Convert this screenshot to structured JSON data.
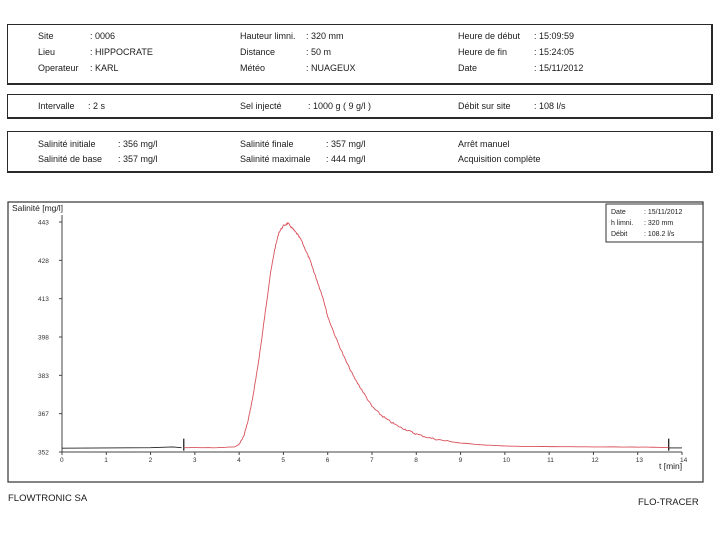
{
  "header": {
    "site_label": "Site",
    "site_value": ": 0006",
    "lieu_label": "Lieu",
    "lieu_value": ": HIPPOCRATE",
    "operateur_label": "Operateur",
    "operateur_value": ": KARL",
    "hauteur_label": "Hauteur limni.",
    "hauteur_value": ": 320 mm",
    "distance_label": "Distance",
    "distance_value": ": 50 m",
    "meteo_label": "Météo",
    "meteo_value": ": NUAGEUX",
    "debut_label": "Heure de début",
    "debut_value": ": 15:09:59",
    "fin_label": "Heure de fin",
    "fin_value": ": 15:24:05",
    "date_label": "Date",
    "date_value": ": 15/11/2012"
  },
  "injection": {
    "intervalle_label": "Intervalle",
    "intervalle_value": ": 2 s",
    "sel_label": "Sel injecté",
    "sel_value": ": 1000  g  ( 9 g/l )",
    "debit_label": "Débit sur site",
    "debit_value": ": 108 l/s"
  },
  "salinity": {
    "initiale_label": "Salinité initiale",
    "initiale_value": ": 356 mg/l",
    "base_label": "Salinité de base",
    "base_value": ": 357 mg/l",
    "finale_label": "Salinité finale",
    "finale_value": ": 357 mg/l",
    "maximale_label": "Salinité maximale",
    "maximale_value": ": 444 mg/l",
    "status1": "Arrêt manuel",
    "status2": "Acquisition complète"
  },
  "legend": {
    "date_label": "Date",
    "date_value": ": 15/11/2012",
    "limni_label": "h limni.",
    "limni_value": ": 320 mm",
    "debit_label": "Débit",
    "debit_value": ": 108.2 l/s"
  },
  "footer": {
    "left": "FLOWTRONIC SA",
    "right": "FLO-TRACER"
  },
  "chart_data": {
    "type": "line",
    "ylabel": "Salinité [mg/l]",
    "xlabel": "t [min]",
    "xlim": [
      0,
      14
    ],
    "ylim": [
      352,
      443
    ],
    "x_ticks": [
      "0",
      "1",
      "2",
      "3",
      "4",
      "5",
      "6",
      "7",
      "8",
      "9",
      "10",
      "11",
      "12",
      "13",
      "14"
    ],
    "y_ticks": [
      "443",
      "428",
      "413",
      "398",
      "383",
      "367",
      "352"
    ],
    "baseline_color": "#222222",
    "curve_color": "#d9505a",
    "baseline_segments": [
      {
        "x": [
          0,
          1,
          2,
          2.5,
          2.7
        ],
        "y": [
          353.5,
          353.6,
          353.7,
          354.0,
          353.7
        ]
      },
      {
        "x": [
          13.7,
          14
        ],
        "y": [
          353.6,
          353.6
        ]
      }
    ],
    "markers_x": [
      2.75,
      13.7
    ],
    "series": [
      {
        "x": [
          2.75,
          3.5,
          3.9,
          4.0,
          4.1,
          4.2,
          4.3,
          4.4,
          4.5,
          4.6,
          4.7,
          4.8,
          4.9,
          5.0,
          5.1,
          5.2,
          5.3,
          5.4,
          5.5,
          5.6,
          5.7,
          5.8,
          5.9,
          6.0,
          6.2,
          6.4,
          6.6,
          6.8,
          7.0,
          7.2,
          7.4,
          7.6,
          7.8,
          8.0,
          8.3,
          8.6,
          9.0,
          9.5,
          10.0,
          11.0,
          12.0,
          13.0,
          13.7
        ],
        "y": [
          353.7,
          353.7,
          354.0,
          355.0,
          358.0,
          364.0,
          373.0,
          384.0,
          396.0,
          409.0,
          422.0,
          432.0,
          439.0,
          441.5,
          442.5,
          440.5,
          438.5,
          436.0,
          432.0,
          428.0,
          423.0,
          418.0,
          413.0,
          406.0,
          397.0,
          389.0,
          382.0,
          376.0,
          370.0,
          366.5,
          364.0,
          362.0,
          360.5,
          359.0,
          357.5,
          356.5,
          355.5,
          354.8,
          354.3,
          354.1,
          354.0,
          353.9,
          353.8
        ]
      }
    ]
  }
}
